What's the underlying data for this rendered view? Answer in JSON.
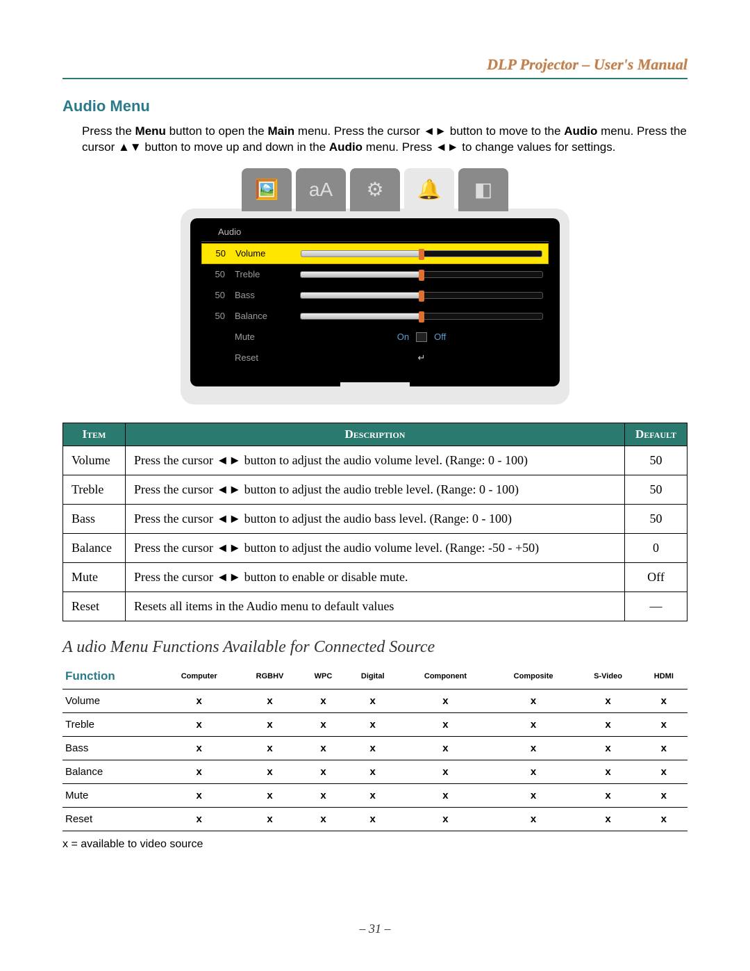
{
  "header": {
    "title": "DLP Projector – User's Manual"
  },
  "section": {
    "title": "Audio Menu"
  },
  "intro": {
    "t1": "Press the ",
    "b1": "Menu",
    "t2": " button to open the ",
    "b2": "Main",
    "t3": " menu. Press the cursor ◄► button to move to the ",
    "b3": "Audio",
    "t4": " menu. Press the cursor ▲▼ button to move up and down in the ",
    "b4": "Audio",
    "t5": " menu. Press ◄► to change values for settings."
  },
  "osd": {
    "title": "Audio",
    "tabs": [
      {
        "icon": "🖼️",
        "active": false
      },
      {
        "icon": "aA",
        "active": false
      },
      {
        "icon": "⚙",
        "active": false
      },
      {
        "icon": "🔔",
        "active": true
      },
      {
        "icon": "◧",
        "active": false
      }
    ],
    "rows": [
      {
        "value": "50",
        "label": "Volume",
        "type": "slider",
        "pct": 50,
        "selected": true
      },
      {
        "value": "50",
        "label": "Treble",
        "type": "slider",
        "pct": 50,
        "selected": false
      },
      {
        "value": "50",
        "label": "Bass",
        "type": "slider",
        "pct": 50,
        "selected": false
      },
      {
        "value": "50",
        "label": "Balance",
        "type": "slider",
        "pct": 50,
        "selected": false
      },
      {
        "value": "",
        "label": "Mute",
        "type": "mute",
        "on": "On",
        "off": "Off",
        "selected": false
      },
      {
        "value": "",
        "label": "Reset",
        "type": "reset",
        "symbol": "↵",
        "selected": false
      }
    ]
  },
  "descTable": {
    "headers": {
      "item": "Item",
      "desc": "Description",
      "def": "Default"
    },
    "rows": [
      {
        "item": "Volume",
        "desc": "Press the cursor ◄► button to adjust the audio volume level. (Range: 0 - 100)",
        "def": "50"
      },
      {
        "item": "Treble",
        "desc": "Press the cursor ◄► button to adjust the audio treble level. (Range: 0 - 100)",
        "def": "50"
      },
      {
        "item": "Bass",
        "desc": "Press the cursor ◄► button to adjust the audio bass level. (Range: 0 - 100)",
        "def": "50"
      },
      {
        "item": "Balance",
        "desc": "Press the cursor ◄► button to adjust the audio volume level. (Range: -50 - +50)",
        "def": "0"
      },
      {
        "item": "Mute",
        "desc": "Press the cursor ◄► button to enable or disable mute.",
        "def": "Off"
      },
      {
        "item": "Reset",
        "desc": "Resets all items in the Audio menu to default values",
        "def": "—"
      }
    ]
  },
  "subheading": "A   udio Menu Functions Available for Connected Source",
  "availTable": {
    "headers": [
      "Function",
      "Computer",
      "RGBHV",
      "WPC",
      "Digital",
      "Component",
      "Composite",
      "S-Video",
      "HDMI"
    ],
    "rows": [
      {
        "func": "Volume",
        "cells": [
          "x",
          "x",
          "x",
          "x",
          "x",
          "x",
          "x",
          "x"
        ]
      },
      {
        "func": "Treble",
        "cells": [
          "x",
          "x",
          "x",
          "x",
          "x",
          "x",
          "x",
          "x"
        ]
      },
      {
        "func": "Bass",
        "cells": [
          "x",
          "x",
          "x",
          "x",
          "x",
          "x",
          "x",
          "x"
        ]
      },
      {
        "func": "Balance",
        "cells": [
          "x",
          "x",
          "x",
          "x",
          "x",
          "x",
          "x",
          "x"
        ]
      },
      {
        "func": "Mute",
        "cells": [
          "x",
          "x",
          "x",
          "x",
          "x",
          "x",
          "x",
          "x"
        ]
      },
      {
        "func": "Reset",
        "cells": [
          "x",
          "x",
          "x",
          "x",
          "x",
          "x",
          "x",
          "x"
        ]
      }
    ]
  },
  "footnote": "x = available to video source",
  "pageNumber": "– 31 –",
  "colors": {
    "teal": "#2a7a6f",
    "headingBlue": "#2a7a8a",
    "headerGold": "#c08050",
    "selectYellow": "#ffe600",
    "knobOrange": "#e07030"
  }
}
